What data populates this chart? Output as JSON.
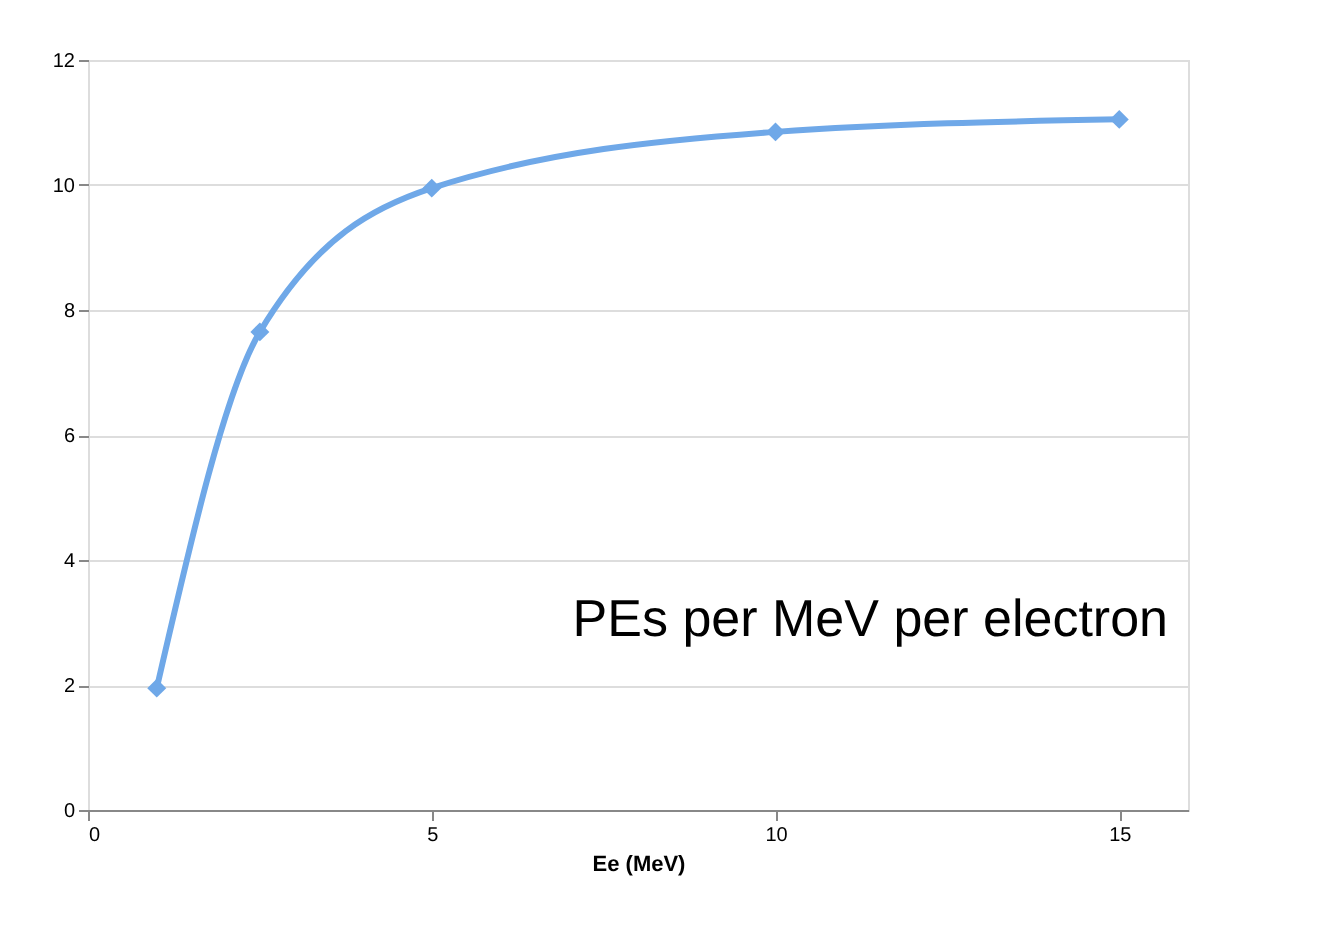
{
  "chart_data": {
    "type": "line",
    "xlabel": "Ee (MeV)",
    "x": [
      1,
      2.5,
      5,
      10,
      15
    ],
    "series": [
      {
        "color": "#6fa8e8",
        "values": [
          1.95,
          7.65,
          9.95,
          10.85,
          11.05
        ]
      }
    ],
    "xlim": [
      0,
      16
    ],
    "xticks": [
      0,
      5,
      10,
      15
    ],
    "ylim": [
      0,
      12
    ],
    "yticks": [
      0,
      2,
      4,
      6,
      8,
      10,
      12
    ],
    "grid": "y",
    "marker": "diamond",
    "line_style": "solid",
    "annotations": [
      "PEs per MeV per electron"
    ]
  }
}
